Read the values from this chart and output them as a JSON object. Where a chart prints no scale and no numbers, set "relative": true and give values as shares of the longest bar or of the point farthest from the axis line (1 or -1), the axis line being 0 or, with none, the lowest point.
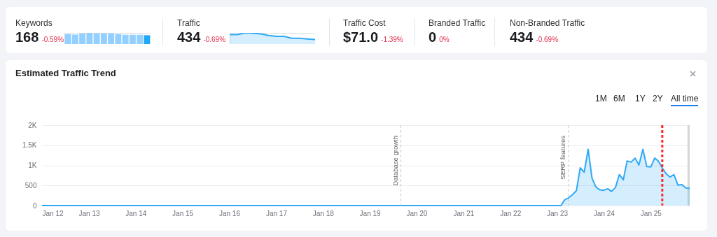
{
  "chart_data": [
    {
      "type": "other",
      "annotations": [
        "Keywords",
        "168",
        "-0.59%",
        "Traffic",
        "434",
        "-0.69%",
        "Traffic Cost",
        "$71.0",
        "-1.39%",
        "Branded Traffic",
        "0",
        "0%",
        "Non-Branded Traffic",
        "434",
        "-0.69%"
      ]
    },
    {
      "type": "bar",
      "relative": true,
      "categories": [
        null,
        null,
        null,
        null,
        null,
        null,
        null,
        null,
        null,
        null,
        null,
        null
      ],
      "values": [
        0.89,
        0.85,
        0.94,
        1,
        0.96,
        0.96,
        0.96,
        0.89,
        0.83,
        0.83,
        0.83,
        0.79
      ],
      "colors": [
        "#93d0ff",
        "#93d0ff",
        "#93d0ff",
        "#93d0ff",
        "#93d0ff",
        "#93d0ff",
        "#93d0ff",
        "#93d0ff",
        "#93d0ff",
        "#93d0ff",
        "#93d0ff",
        "#22a7fb"
      ]
    },
    {
      "type": "area",
      "relative": true,
      "categories": [
        null,
        null,
        null,
        null,
        null,
        null,
        null,
        null,
        null,
        null,
        null,
        null
      ],
      "series": [
        {
          "color": "#2fa9f5",
          "values": [
            0.85,
            0.85,
            1,
            0.97,
            0.9,
            0.77,
            0.69,
            0.69,
            0.51,
            0.51,
            0.46,
            0.41
          ]
        }
      ]
    },
    {
      "type": "area",
      "title": "Estimated Traffic Trend",
      "annotations": [
        "1M",
        "6M",
        "1Y",
        "2Y",
        "All time"
      ],
      "x": [
        "2012-01",
        "2023-01",
        "2023-02",
        "2023-03",
        "2023-04",
        "2023-05",
        "2023-06",
        "2023-07",
        "2023-08",
        "2023-09",
        "2023-10",
        "2023-11",
        "2023-12",
        "2024-01",
        "2024-02",
        "2024-03",
        "2024-04",
        "2024-05",
        "2024-06",
        "2024-07",
        "2024-08",
        "2024-09",
        "2024-10",
        "2024-11",
        "2024-12",
        "2025-01",
        "2025-02",
        "2025-03",
        "2025-04",
        "2025-05",
        "2025-06",
        "2025-07",
        "2025-08",
        "2025-09",
        "2025-10",
        "2025-11"
      ],
      "series": [
        {
          "color": "#2fa9f5",
          "values": [
            0,
            0,
            0,
            140,
            190,
            270,
            370,
            940,
            830,
            1400,
            680,
            460,
            390,
            380,
            420,
            350,
            450,
            770,
            640,
            1110,
            1080,
            1180,
            1010,
            1400,
            970,
            960,
            1180,
            1110,
            940,
            790,
            710,
            770,
            510,
            520,
            440,
            430
          ]
        }
      ],
      "xlim": [
        "2012-01",
        "2025-11"
      ],
      "xticks": [
        {
          "value": "2012-01",
          "label": "Jan 12"
        },
        {
          "value": "2013-01",
          "label": "Jan 13"
        },
        {
          "value": "2014-01",
          "label": "Jan 14"
        },
        {
          "value": "2015-01",
          "label": "Jan 15"
        },
        {
          "value": "2016-01",
          "label": "Jan 16"
        },
        {
          "value": "2017-01",
          "label": "Jan 17"
        },
        {
          "value": "2018-01",
          "label": "Jan 18"
        },
        {
          "value": "2019-01",
          "label": "Jan 19"
        },
        {
          "value": "2020-01",
          "label": "Jan 20"
        },
        {
          "value": "2021-01",
          "label": "Jan 21"
        },
        {
          "value": "2022-01",
          "label": "Jan 22"
        },
        {
          "value": "2023-01",
          "label": "Jan 23"
        },
        {
          "value": "2024-01",
          "label": "Jan 24"
        },
        {
          "value": "2025-01",
          "label": "Jan 25"
        }
      ],
      "ylim": [
        0,
        2000
      ],
      "yticks": [
        0,
        500,
        {
          "value": 1000,
          "label": "1K"
        },
        {
          "value": 1500,
          "label": "1.5K"
        },
        {
          "value": 2000,
          "label": "2K"
        }
      ],
      "ref_lines": [
        {
          "axis": "x",
          "value": "2019-09",
          "label": "Database growth",
          "color": "#c4c7cf",
          "line_style": "dashed"
        },
        {
          "axis": "x",
          "value": "2023-04",
          "label": "SERP features",
          "color": "#c4c7cf",
          "line_style": "dashed"
        },
        {
          "axis": "x",
          "value": "2025-04",
          "color": "#ff2b2b",
          "line_style": "dashed"
        }
      ],
      "bands": [
        {
          "axis": "x",
          "from": "2025-10-15",
          "to": "2025-11",
          "color": "#c9cfcc"
        }
      ],
      "grid": "y",
      "marker": "none",
      "line_style": "solid"
    }
  ]
}
